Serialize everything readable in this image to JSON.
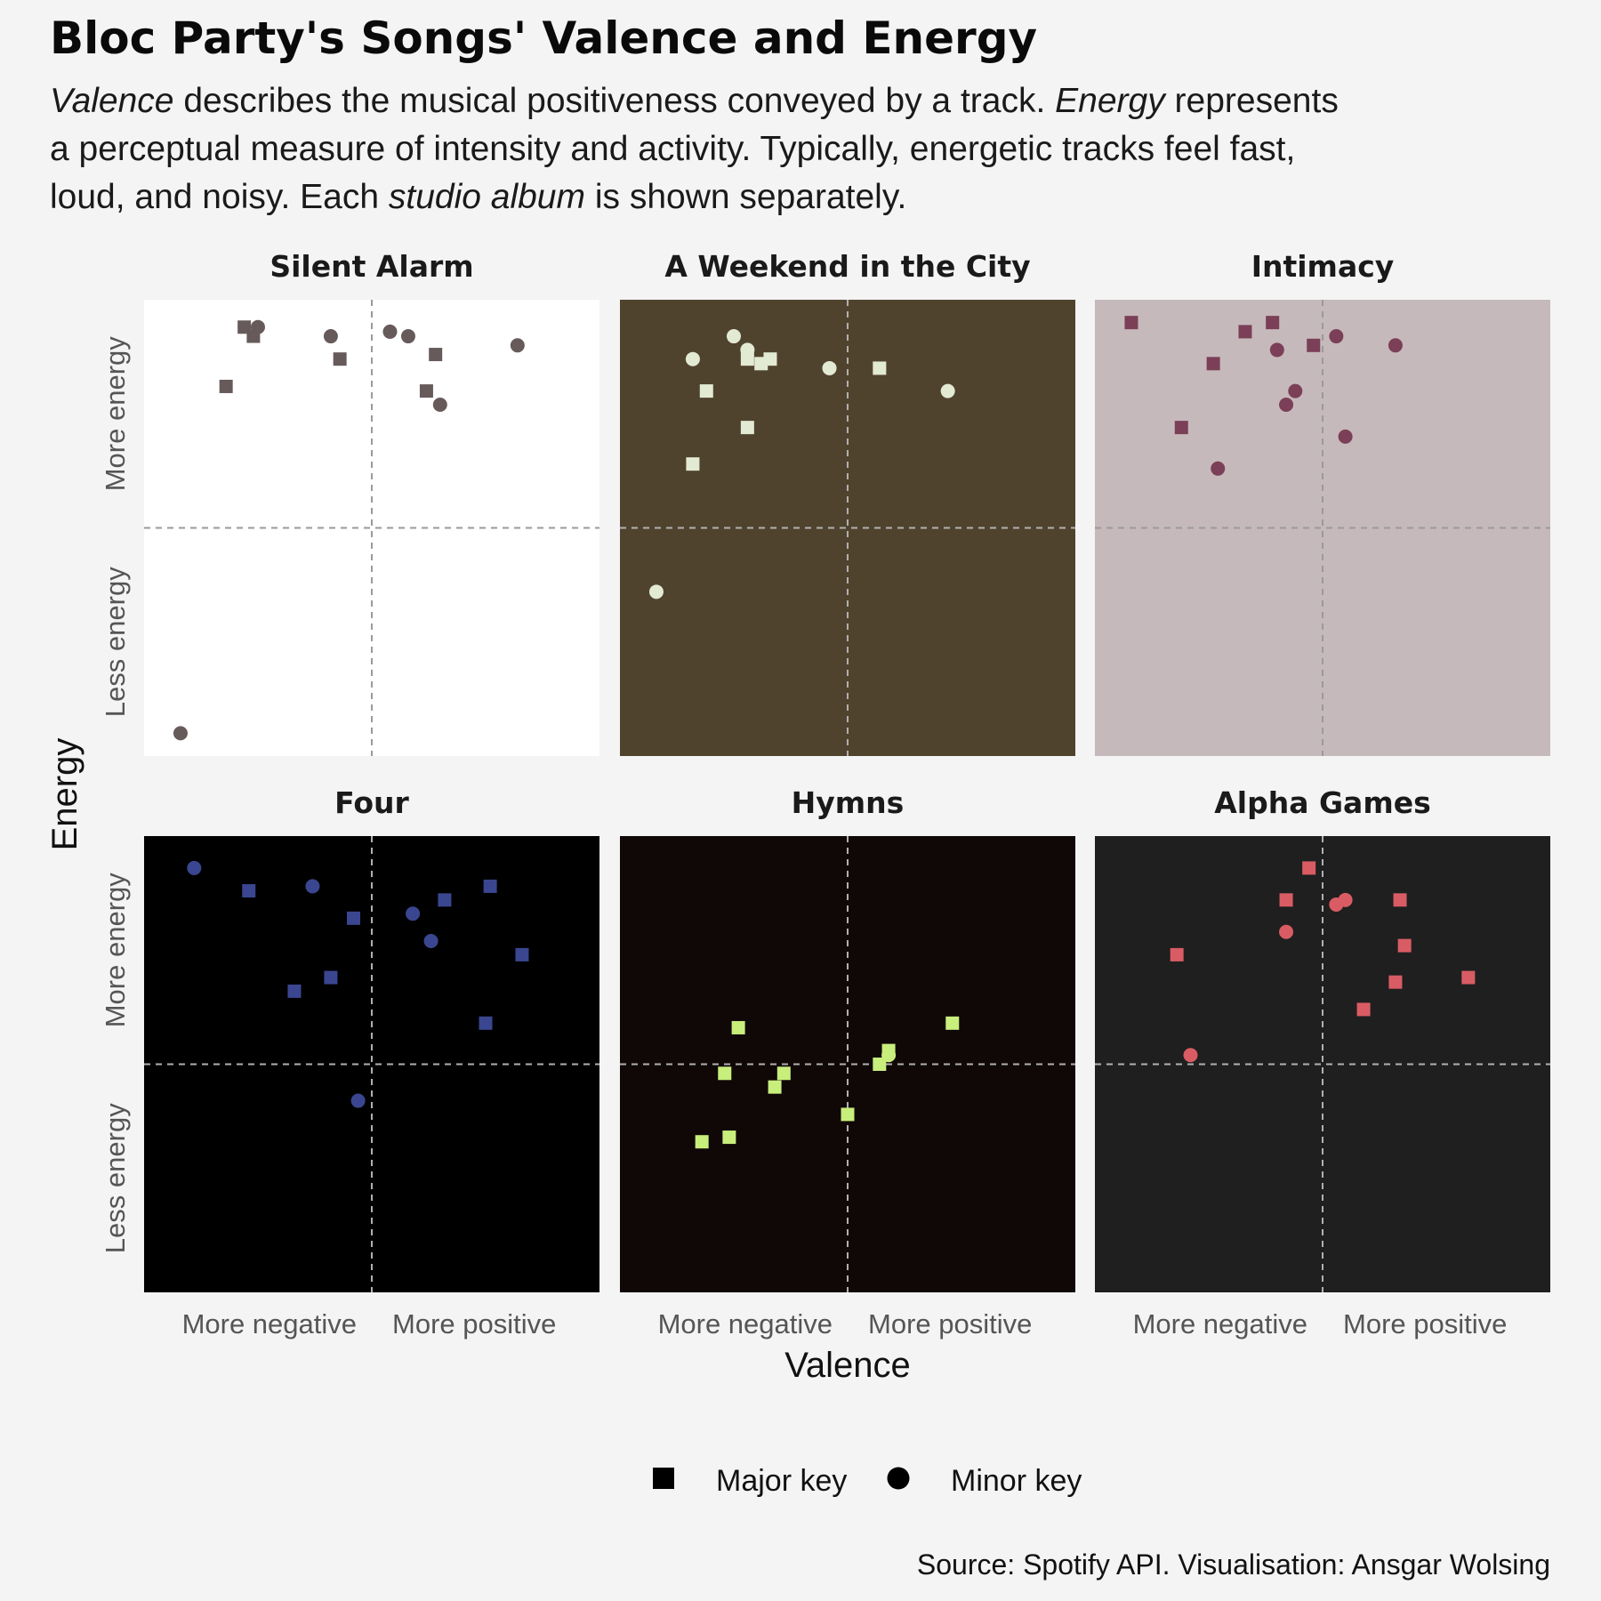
{
  "title": "Bloc Party's Songs' Valence and Energy",
  "subtitle_lines": [
    [
      {
        "t": "Valence",
        "i": true
      },
      {
        "t": " describes the musical positiveness conveyed by a track. "
      },
      {
        "t": "Energy",
        "i": true
      },
      {
        "t": " represents"
      }
    ],
    [
      {
        "t": "a perceptual measure of intensity and activity. Typically, energetic tracks feel fast,"
      }
    ],
    [
      {
        "t": "loud, and noisy. Each "
      },
      {
        "t": "studio album",
        "i": true
      },
      {
        "t": " is shown separately."
      }
    ]
  ],
  "caption": "Source: Spotify API. Visualisation: Ansgar Wolsing",
  "legend": {
    "major": "Major key",
    "minor": "Minor key"
  },
  "chart_data": {
    "type": "scatter",
    "facet_by": "studio album",
    "x": {
      "label": "Valence",
      "range": [
        0,
        1
      ],
      "midline": 0.5,
      "tick_labels": [
        "More negative",
        "More positive"
      ]
    },
    "y": {
      "label": "Energy",
      "range": [
        0,
        1
      ],
      "midline": 0.5,
      "tick_labels": [
        "Less energy",
        "More energy"
      ]
    },
    "shape_legend": [
      {
        "shape": "square",
        "label": "Major key"
      },
      {
        "shape": "circle",
        "label": "Minor key"
      }
    ],
    "facets": [
      {
        "album": "Silent Alarm",
        "panel_color": "#ffffff",
        "point_color": "#675a5b",
        "points": [
          {
            "v": 0.22,
            "e": 0.94,
            "mode": "major"
          },
          {
            "v": 0.24,
            "e": 0.92,
            "mode": "major"
          },
          {
            "v": 0.25,
            "e": 0.94,
            "mode": "minor"
          },
          {
            "v": 0.18,
            "e": 0.81,
            "mode": "major"
          },
          {
            "v": 0.41,
            "e": 0.92,
            "mode": "minor"
          },
          {
            "v": 0.43,
            "e": 0.87,
            "mode": "major"
          },
          {
            "v": 0.54,
            "e": 0.93,
            "mode": "minor"
          },
          {
            "v": 0.58,
            "e": 0.92,
            "mode": "minor"
          },
          {
            "v": 0.64,
            "e": 0.88,
            "mode": "major"
          },
          {
            "v": 0.62,
            "e": 0.8,
            "mode": "major"
          },
          {
            "v": 0.65,
            "e": 0.77,
            "mode": "minor"
          },
          {
            "v": 0.82,
            "e": 0.9,
            "mode": "minor"
          },
          {
            "v": 0.08,
            "e": 0.05,
            "mode": "minor"
          }
        ]
      },
      {
        "album": "A Weekend in the City",
        "panel_color": "#50432e",
        "point_color": "#e3ead3",
        "points": [
          {
            "v": 0.25,
            "e": 0.92,
            "mode": "minor"
          },
          {
            "v": 0.28,
            "e": 0.89,
            "mode": "minor"
          },
          {
            "v": 0.16,
            "e": 0.87,
            "mode": "minor"
          },
          {
            "v": 0.28,
            "e": 0.87,
            "mode": "major"
          },
          {
            "v": 0.31,
            "e": 0.86,
            "mode": "major"
          },
          {
            "v": 0.33,
            "e": 0.87,
            "mode": "major"
          },
          {
            "v": 0.46,
            "e": 0.85,
            "mode": "minor"
          },
          {
            "v": 0.57,
            "e": 0.85,
            "mode": "major"
          },
          {
            "v": 0.19,
            "e": 0.8,
            "mode": "major"
          },
          {
            "v": 0.72,
            "e": 0.8,
            "mode": "minor"
          },
          {
            "v": 0.28,
            "e": 0.72,
            "mode": "major"
          },
          {
            "v": 0.16,
            "e": 0.64,
            "mode": "major"
          },
          {
            "v": 0.08,
            "e": 0.36,
            "mode": "minor"
          }
        ]
      },
      {
        "album": "Intimacy",
        "panel_color": "#c6b9bb",
        "point_color": "#7b3f58",
        "points": [
          {
            "v": 0.08,
            "e": 0.95,
            "mode": "major"
          },
          {
            "v": 0.33,
            "e": 0.93,
            "mode": "major"
          },
          {
            "v": 0.39,
            "e": 0.95,
            "mode": "major"
          },
          {
            "v": 0.26,
            "e": 0.86,
            "mode": "major"
          },
          {
            "v": 0.4,
            "e": 0.89,
            "mode": "minor"
          },
          {
            "v": 0.48,
            "e": 0.9,
            "mode": "major"
          },
          {
            "v": 0.53,
            "e": 0.92,
            "mode": "minor"
          },
          {
            "v": 0.66,
            "e": 0.9,
            "mode": "minor"
          },
          {
            "v": 0.44,
            "e": 0.8,
            "mode": "minor"
          },
          {
            "v": 0.42,
            "e": 0.77,
            "mode": "minor"
          },
          {
            "v": 0.19,
            "e": 0.72,
            "mode": "major"
          },
          {
            "v": 0.55,
            "e": 0.7,
            "mode": "minor"
          },
          {
            "v": 0.27,
            "e": 0.63,
            "mode": "minor"
          }
        ]
      },
      {
        "album": "Four",
        "panel_color": "#000000",
        "point_color": "#3b4690",
        "points": [
          {
            "v": 0.11,
            "e": 0.93,
            "mode": "minor"
          },
          {
            "v": 0.23,
            "e": 0.88,
            "mode": "major"
          },
          {
            "v": 0.37,
            "e": 0.89,
            "mode": "minor"
          },
          {
            "v": 0.76,
            "e": 0.89,
            "mode": "major"
          },
          {
            "v": 0.66,
            "e": 0.86,
            "mode": "major"
          },
          {
            "v": 0.46,
            "e": 0.82,
            "mode": "major"
          },
          {
            "v": 0.59,
            "e": 0.83,
            "mode": "minor"
          },
          {
            "v": 0.63,
            "e": 0.77,
            "mode": "minor"
          },
          {
            "v": 0.83,
            "e": 0.74,
            "mode": "major"
          },
          {
            "v": 0.41,
            "e": 0.69,
            "mode": "major"
          },
          {
            "v": 0.33,
            "e": 0.66,
            "mode": "major"
          },
          {
            "v": 0.75,
            "e": 0.59,
            "mode": "major"
          },
          {
            "v": 0.47,
            "e": 0.42,
            "mode": "minor"
          }
        ]
      },
      {
        "album": "Hymns",
        "panel_color": "#100807",
        "point_color": "#c8ee7c",
        "points": [
          {
            "v": 0.73,
            "e": 0.59,
            "mode": "major"
          },
          {
            "v": 0.26,
            "e": 0.58,
            "mode": "major"
          },
          {
            "v": 0.59,
            "e": 0.53,
            "mode": "major"
          },
          {
            "v": 0.59,
            "e": 0.52,
            "mode": "minor"
          },
          {
            "v": 0.57,
            "e": 0.5,
            "mode": "major"
          },
          {
            "v": 0.23,
            "e": 0.48,
            "mode": "major"
          },
          {
            "v": 0.36,
            "e": 0.48,
            "mode": "major"
          },
          {
            "v": 0.34,
            "e": 0.45,
            "mode": "major"
          },
          {
            "v": 0.5,
            "e": 0.39,
            "mode": "major"
          },
          {
            "v": 0.24,
            "e": 0.34,
            "mode": "major"
          },
          {
            "v": 0.18,
            "e": 0.33,
            "mode": "major"
          }
        ]
      },
      {
        "album": "Alpha Games",
        "panel_color": "#1f1f1f",
        "point_color": "#d95c64",
        "points": [
          {
            "v": 0.47,
            "e": 0.93,
            "mode": "major"
          },
          {
            "v": 0.42,
            "e": 0.86,
            "mode": "major"
          },
          {
            "v": 0.55,
            "e": 0.86,
            "mode": "minor"
          },
          {
            "v": 0.53,
            "e": 0.85,
            "mode": "minor"
          },
          {
            "v": 0.67,
            "e": 0.86,
            "mode": "major"
          },
          {
            "v": 0.42,
            "e": 0.79,
            "mode": "minor"
          },
          {
            "v": 0.18,
            "e": 0.74,
            "mode": "major"
          },
          {
            "v": 0.68,
            "e": 0.76,
            "mode": "major"
          },
          {
            "v": 0.66,
            "e": 0.68,
            "mode": "major"
          },
          {
            "v": 0.82,
            "e": 0.69,
            "mode": "major"
          },
          {
            "v": 0.59,
            "e": 0.62,
            "mode": "major"
          },
          {
            "v": 0.21,
            "e": 0.52,
            "mode": "minor"
          }
        ]
      }
    ]
  }
}
